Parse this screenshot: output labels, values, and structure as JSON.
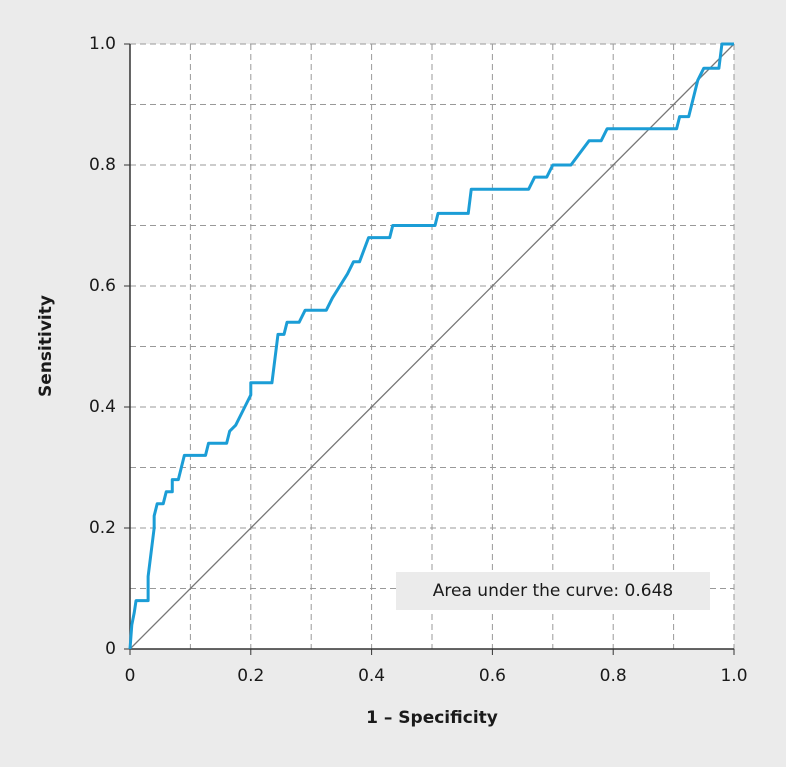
{
  "chart_data": {
    "type": "line",
    "xlabel": "1 – Specificity",
    "ylabel": "Sensitivity",
    "annotation": "Area under the curve: 0.648",
    "xlim": [
      0,
      1
    ],
    "ylim": [
      0,
      1
    ],
    "xticks": [
      0,
      0.2,
      0.4,
      0.6,
      0.8,
      {
        "value": 1,
        "label": "1.0"
      }
    ],
    "yticks": [
      0,
      0.2,
      0.4,
      0.6,
      0.8,
      {
        "value": 1,
        "label": "1.0"
      }
    ],
    "grid_step": 0.1,
    "grid": true,
    "diagonal": {
      "x": [
        0,
        1
      ],
      "y": [
        0,
        1
      ],
      "color": "#777777"
    },
    "series": [
      {
        "color": "#1b9dd6",
        "x": [
          0,
          0.003,
          0.007,
          0.01,
          0.03,
          0.03,
          0.035,
          0.04,
          0.04,
          0.045,
          0.055,
          0.06,
          0.07,
          0.07,
          0.08,
          0.085,
          0.09,
          0.125,
          0.13,
          0.16,
          0.165,
          0.175,
          0.19,
          0.2,
          0.2,
          0.235,
          0.245,
          0.255,
          0.26,
          0.28,
          0.29,
          0.325,
          0.335,
          0.36,
          0.37,
          0.38,
          0.395,
          0.43,
          0.435,
          0.505,
          0.51,
          0.56,
          0.565,
          0.66,
          0.67,
          0.69,
          0.7,
          0.73,
          0.745,
          0.76,
          0.78,
          0.79,
          0.905,
          0.91,
          0.925,
          0.93,
          0.94,
          0.95,
          0.975,
          0.98,
          1.0
        ],
        "values": [
          0,
          0.04,
          0.06,
          0.08,
          0.08,
          0.12,
          0.16,
          0.2,
          0.22,
          0.24,
          0.24,
          0.26,
          0.26,
          0.28,
          0.28,
          0.3,
          0.32,
          0.32,
          0.34,
          0.34,
          0.36,
          0.37,
          0.4,
          0.42,
          0.44,
          0.44,
          0.52,
          0.52,
          0.54,
          0.54,
          0.56,
          0.56,
          0.58,
          0.62,
          0.64,
          0.64,
          0.68,
          0.68,
          0.7,
          0.7,
          0.72,
          0.72,
          0.76,
          0.76,
          0.78,
          0.78,
          0.8,
          0.8,
          0.82,
          0.84,
          0.84,
          0.86,
          0.86,
          0.88,
          0.88,
          0.9,
          0.94,
          0.96,
          0.96,
          1.0,
          1.0
        ]
      }
    ]
  }
}
